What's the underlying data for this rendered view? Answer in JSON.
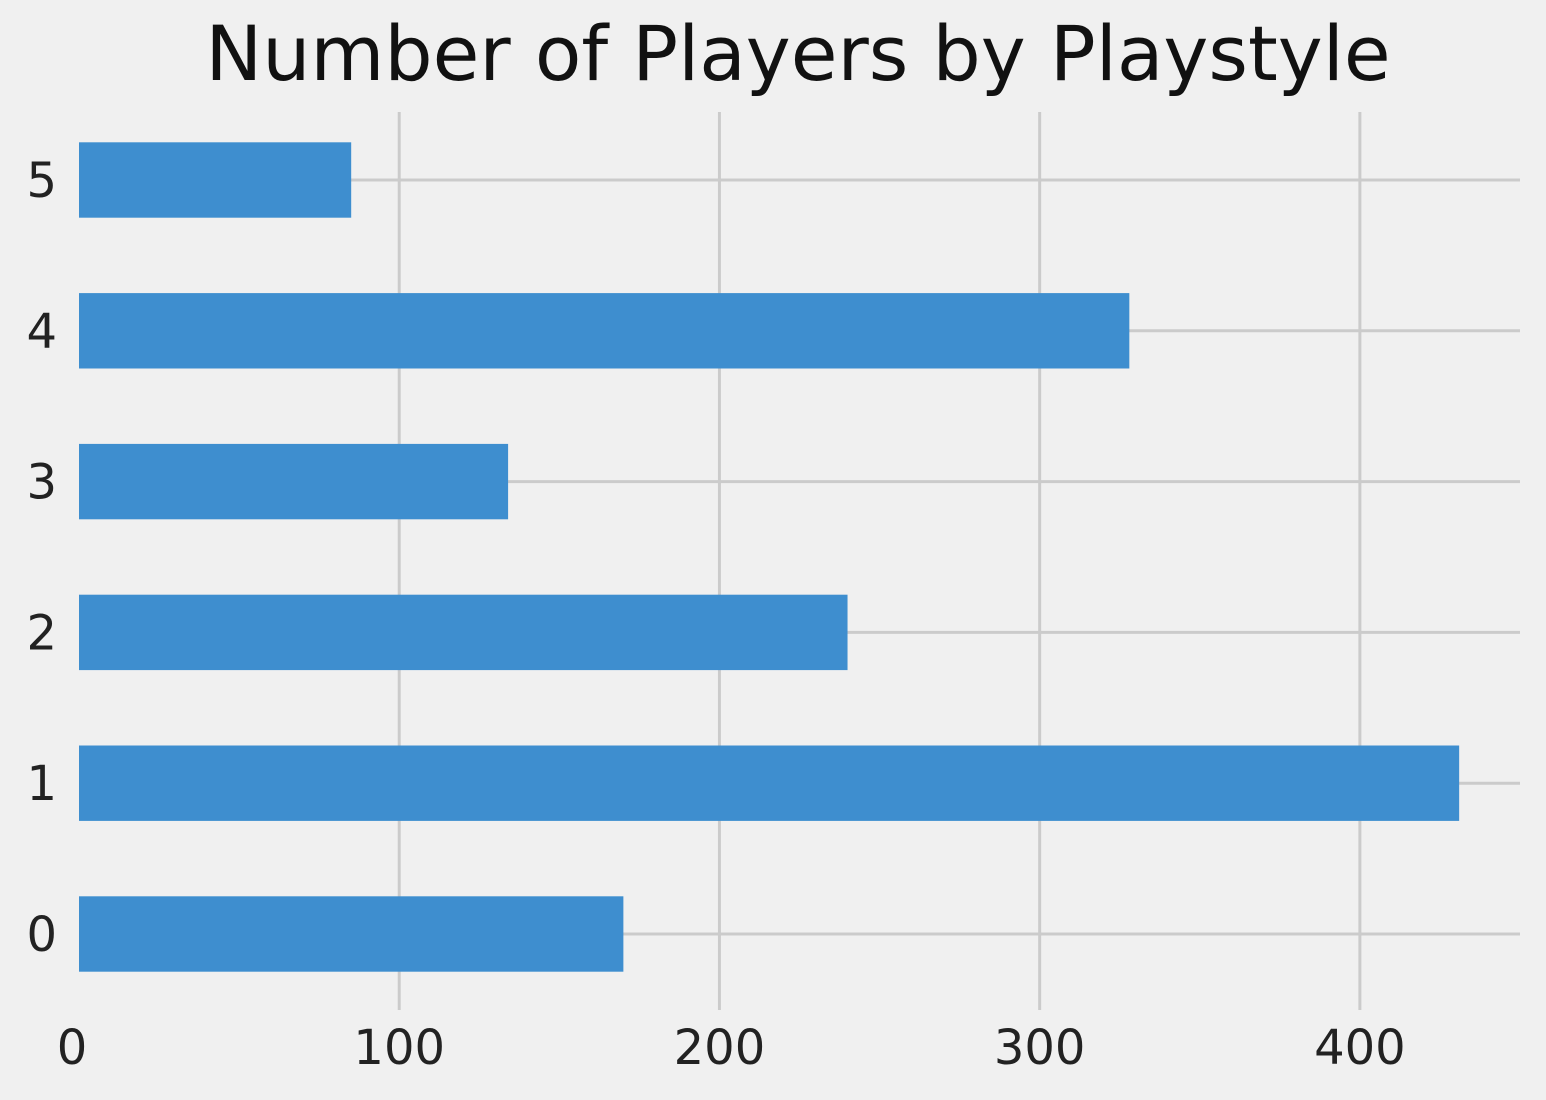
{
  "chart_data": {
    "type": "bar",
    "orientation": "horizontal",
    "title": "Number of Players by Playstyle",
    "xlabel": "",
    "ylabel": "",
    "categories": [
      "0",
      "1",
      "2",
      "3",
      "4",
      "5"
    ],
    "values": [
      170,
      431,
      240,
      134,
      328,
      85
    ],
    "xlim": [
      0,
      450
    ],
    "xticks": [
      0,
      100,
      200,
      300,
      400
    ],
    "grid": true,
    "legend": "none",
    "colors": {
      "bar": "#3e8ecf",
      "background": "#f0f0f0",
      "grid": "#cbcbcb"
    }
  }
}
